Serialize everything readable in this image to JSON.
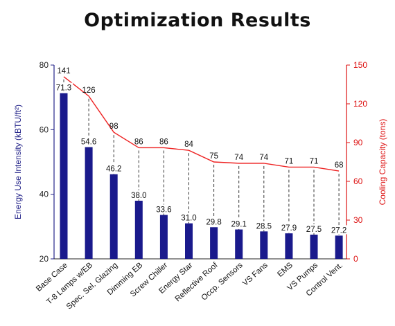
{
  "chart_data": {
    "type": "bar",
    "title": "Optimization Results",
    "categories": [
      "Base Case",
      "T-8 Lamps w/EB",
      "Spec. Sel. Glazing",
      "Dimming EB",
      "Screw Chiller",
      "Energy Star",
      "Reflective Roof",
      "Occp. Sensors",
      "VS Fans",
      "EMS",
      "VS Pumps",
      "Control Vent."
    ],
    "series": [
      {
        "name": "Energy Use Intensity",
        "type": "bar",
        "axis": "left",
        "values": [
          71.3,
          54.6,
          46.2,
          38.0,
          33.6,
          31.0,
          29.8,
          29.1,
          28.5,
          27.9,
          27.5,
          27.2
        ],
        "labels": [
          "71.3",
          "54.6",
          "46.2",
          "38.0",
          "33.6",
          "31.0",
          "29.8",
          "29.1",
          "28.5",
          "27.9",
          "27.5",
          "27.2"
        ]
      },
      {
        "name": "Cooling Capacity",
        "type": "line",
        "axis": "right",
        "values": [
          141,
          126,
          98,
          86,
          86,
          84,
          75,
          74,
          74,
          71,
          71,
          68
        ],
        "labels": [
          "141",
          "126",
          "98",
          "86",
          "86",
          "84",
          "75",
          "74",
          "74",
          "71",
          "71",
          "68"
        ]
      }
    ],
    "ylabel": "Energy Use Intensity (kBTU/ft²)",
    "y2label": "Cooling Capacity (tons)",
    "ylim": [
      20,
      80
    ],
    "y2lim": [
      0,
      150
    ],
    "yticks": [
      "20",
      "40",
      "60",
      "80"
    ],
    "y2ticks": [
      "0",
      "30",
      "60",
      "90",
      "120",
      "150"
    ],
    "grid": false,
    "colors": {
      "bar": "#1a1a8c",
      "line": "#ee2222",
      "right_axis": "#dd1111",
      "left_axis": "#222288",
      "dashed": "#333333"
    }
  }
}
